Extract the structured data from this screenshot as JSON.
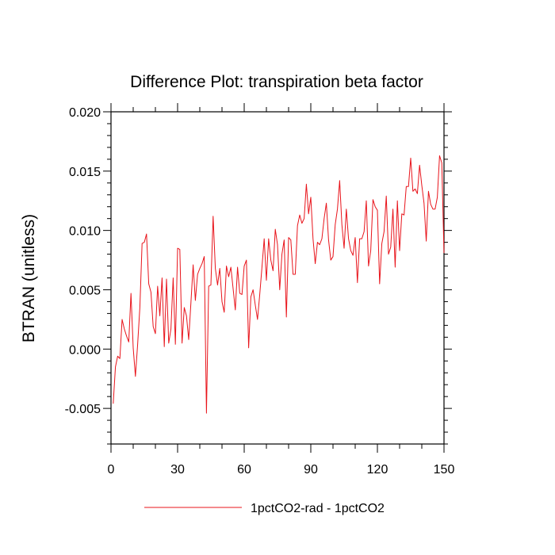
{
  "chart_data": {
    "type": "line",
    "title": "Difference Plot: transpiration beta factor",
    "xlabel": "",
    "ylabel": "BTRAN  (unitless)",
    "xlim": [
      0,
      150
    ],
    "ylim": [
      -0.008,
      0.02
    ],
    "x_ticks": [
      0,
      30,
      60,
      90,
      120,
      150
    ],
    "x_tick_labels": [
      "0",
      "30",
      "60",
      "90",
      "120",
      "150"
    ],
    "y_ticks": [
      -0.005,
      0,
      0.005,
      0.01,
      0.015,
      0.02
    ],
    "y_tick_labels": [
      "-0.005",
      "0.000",
      "0.005",
      "0.010",
      "0.015",
      "0.020"
    ],
    "grid": false,
    "legend_position": "bottom",
    "colors": {
      "series": "#e8141b",
      "axis": "#000000"
    },
    "series": [
      {
        "name": "1pctCO2-rad - 1pctCO2",
        "x": [
          1,
          2,
          3,
          4,
          5,
          6,
          7,
          8,
          9,
          10,
          11,
          12,
          13,
          14,
          15,
          16,
          17,
          18,
          19,
          20,
          21,
          22,
          23,
          24,
          25,
          26,
          27,
          28,
          29,
          30,
          31,
          32,
          33,
          34,
          35,
          36,
          37,
          38,
          39,
          40,
          41,
          42,
          43,
          44,
          45,
          46,
          47,
          48,
          49,
          50,
          51,
          52,
          53,
          54,
          55,
          56,
          57,
          58,
          59,
          60,
          61,
          62,
          63,
          64,
          65,
          66,
          67,
          68,
          69,
          70,
          71,
          72,
          73,
          74,
          75,
          76,
          77,
          78,
          79,
          80,
          81,
          82,
          83,
          84,
          85,
          86,
          87,
          88,
          89,
          90,
          91,
          92,
          93,
          94,
          95,
          96,
          97,
          98,
          99,
          100,
          101,
          102,
          103,
          104,
          105,
          106,
          107,
          108,
          109,
          110,
          111,
          112,
          113,
          114,
          115,
          116,
          117,
          118,
          119,
          120,
          121,
          122,
          123,
          124,
          125,
          126,
          127,
          128,
          129,
          130,
          131,
          132,
          133,
          134,
          135,
          136,
          137,
          138,
          139,
          140,
          141,
          142,
          143,
          144,
          145,
          146,
          147,
          148,
          149,
          150
        ],
        "values": [
          -0.0046,
          -0.0015,
          -0.0006,
          -0.0008,
          0.0025,
          0.0017,
          0.0011,
          0.0006,
          0.0047,
          0.0001,
          -0.0023,
          0.0004,
          0.0035,
          0.0089,
          0.009,
          0.0097,
          0.0055,
          0.0048,
          0.0019,
          0.0013,
          0.0053,
          0.0028,
          0.006,
          0.0002,
          0.0059,
          0.0005,
          0.0017,
          0.006,
          0.0004,
          0.0085,
          0.0084,
          0.0005,
          0.0035,
          0.0028,
          0.0008,
          0.0039,
          0.0071,
          0.0041,
          0.0063,
          0.0068,
          0.0072,
          0.0078,
          -0.0054,
          0.0053,
          0.0054,
          0.0112,
          0.0068,
          0.0054,
          0.0068,
          0.004,
          0.0031,
          0.007,
          0.0061,
          0.0069,
          0.0051,
          0.0033,
          0.0069,
          0.0047,
          0.0046,
          0.007,
          0.0075,
          0.0001,
          0.0044,
          0.005,
          0.0037,
          0.0025,
          0.0046,
          0.0069,
          0.0093,
          0.0058,
          0.0093,
          0.0075,
          0.0066,
          0.0101,
          0.0088,
          0.005,
          0.008,
          0.0092,
          0.0027,
          0.0094,
          0.0092,
          0.0063,
          0.0063,
          0.0104,
          0.0113,
          0.0106,
          0.011,
          0.0139,
          0.0114,
          0.0128,
          0.0093,
          0.0072,
          0.009,
          0.0088,
          0.0093,
          0.011,
          0.0123,
          0.0092,
          0.0075,
          0.0078,
          0.0105,
          0.0118,
          0.0142,
          0.0105,
          0.0085,
          0.0118,
          0.0093,
          0.0083,
          0.0079,
          0.0094,
          0.0056,
          0.0093,
          0.0093,
          0.0099,
          0.0125,
          0.007,
          0.0083,
          0.0126,
          0.012,
          0.0117,
          0.0055,
          0.0089,
          0.0099,
          0.0129,
          0.008,
          0.0086,
          0.0118,
          0.0069,
          0.0125,
          0.0083,
          0.0114,
          0.0113,
          0.0137,
          0.0137,
          0.0161,
          0.0133,
          0.0135,
          0.0131,
          0.0155,
          0.0138,
          0.0123,
          0.0091,
          0.0133,
          0.0122,
          0.0118,
          0.0118,
          0.0128,
          0.0163,
          0.0157,
          0.0081
        ]
      }
    ]
  }
}
